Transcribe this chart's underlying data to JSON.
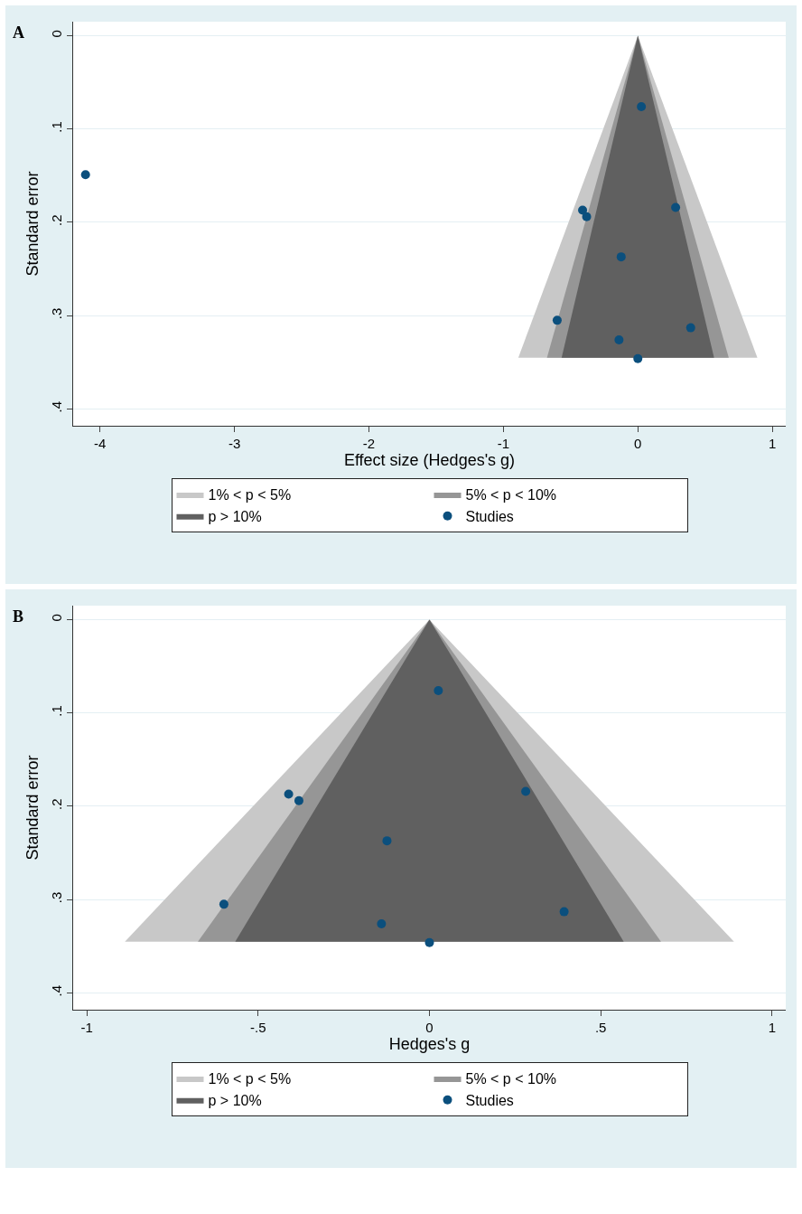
{
  "chart_data": [
    {
      "type": "scatter",
      "xlabel": "Effect size (Hedges's g)",
      "ylabel": "Standard error",
      "annotations": [
        "A"
      ],
      "xlim": [
        -4.2,
        1.1
      ],
      "xticks": [
        -4,
        -3,
        -2,
        -1,
        0,
        1
      ],
      "ylim": [
        0.418,
        -0.015
      ],
      "yticks": [
        {
          "value": 0,
          "label": "0"
        },
        {
          "value": 0.1,
          "label": ".1"
        },
        {
          "value": 0.2,
          "label": ".2"
        },
        {
          "value": 0.3,
          "label": ".3"
        },
        {
          "value": 0.4,
          "label": ".4"
        }
      ],
      "grid": "y",
      "legend": "bottom",
      "series": [
        {
          "type": "area",
          "name": "1% < p < 5%",
          "color": "#c8c8c8",
          "x": [
            -0.889,
            0,
            0.889
          ],
          "values": [
            0.345,
            0,
            0.345
          ]
        },
        {
          "type": "area",
          "name": "5% < p < 10%",
          "color": "#969696",
          "x": [
            -0.676,
            0,
            0.676
          ],
          "values": [
            0.345,
            0,
            0.345
          ]
        },
        {
          "type": "area",
          "name": "p > 10%",
          "color": "#606060",
          "x": [
            -0.567,
            0,
            0.567
          ],
          "values": [
            0.345,
            0,
            0.345
          ]
        },
        {
          "marker": "circle",
          "name": "Studies",
          "color": "#0b4f7d",
          "x": [
            -4.108,
            0.026,
            -0.411,
            -0.381,
            0.281,
            -0.124,
            -0.6,
            -0.14,
            0,
            0.393
          ],
          "values": [
            0.149,
            0.076,
            0.187,
            0.194,
            0.184,
            0.237,
            0.305,
            0.326,
            0.346,
            0.313
          ]
        }
      ]
    },
    {
      "type": "scatter",
      "xlabel": "Hedges's g",
      "ylabel": "Standard error",
      "annotations": [
        "B"
      ],
      "xlim": [
        -1.04,
        1.04
      ],
      "xticks": [
        {
          "value": -1,
          "label": "-1"
        },
        {
          "value": -0.5,
          "label": "-.5"
        },
        {
          "value": 0,
          "label": "0"
        },
        {
          "value": 0.5,
          "label": ".5"
        },
        {
          "value": 1,
          "label": "1"
        }
      ],
      "ylim": [
        0.418,
        -0.015
      ],
      "yticks": [
        {
          "value": 0,
          "label": "0"
        },
        {
          "value": 0.1,
          "label": ".1"
        },
        {
          "value": 0.2,
          "label": ".2"
        },
        {
          "value": 0.3,
          "label": ".3"
        },
        {
          "value": 0.4,
          "label": ".4"
        }
      ],
      "grid": "y",
      "legend": "bottom",
      "series": [
        {
          "type": "area",
          "name": "1% < p < 5%",
          "color": "#c8c8c8",
          "x": [
            -0.889,
            0,
            0.889
          ],
          "values": [
            0.345,
            0,
            0.345
          ]
        },
        {
          "type": "area",
          "name": "5% < p < 10%",
          "color": "#969696",
          "x": [
            -0.676,
            0,
            0.676
          ],
          "values": [
            0.345,
            0,
            0.345
          ]
        },
        {
          "type": "area",
          "name": "p > 10%",
          "color": "#606060",
          "x": [
            -0.567,
            0,
            0.567
          ],
          "values": [
            0.345,
            0,
            0.345
          ]
        },
        {
          "marker": "circle",
          "name": "Studies",
          "color": "#0b4f7d",
          "x": [
            0.026,
            -0.411,
            -0.381,
            0.281,
            -0.124,
            -0.6,
            -0.14,
            0,
            0.393
          ],
          "values": [
            0.076,
            0.187,
            0.194,
            0.184,
            0.237,
            0.305,
            0.326,
            0.346,
            0.313
          ]
        }
      ]
    }
  ]
}
